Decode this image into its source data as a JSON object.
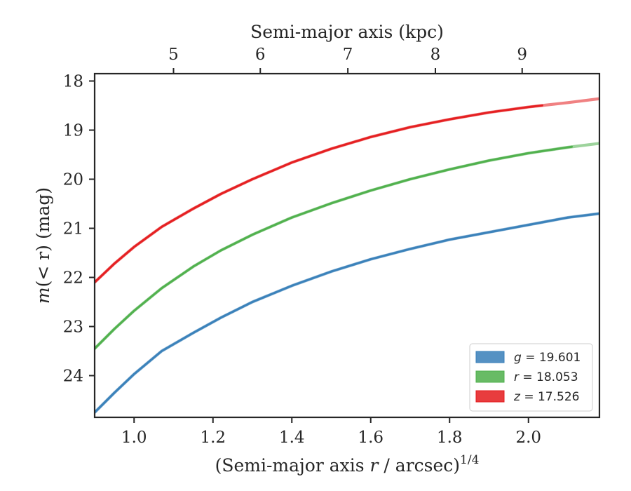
{
  "chart_data": {
    "type": "line",
    "xlabel": "(Semi-major axis r / arcsec)1/4",
    "xlabel_parts": {
      "pre": "(Semi-major axis ",
      "var": "r",
      "post": " / arcsec)",
      "sup": "1/4"
    },
    "x2label": "Semi-major axis (kpc)",
    "ylabel": "m(<r) (mag)",
    "ylabel_parts": {
      "pre": "m",
      "post": "(< r) (mag)"
    },
    "xlim": [
      0.9,
      2.18
    ],
    "ylim": [
      24.85,
      17.85
    ],
    "y_inverted": true,
    "xticks": [
      1.0,
      1.2,
      1.4,
      1.6,
      1.8,
      2.0
    ],
    "xtick_labels": [
      "1.0",
      "1.2",
      "1.4",
      "1.6",
      "1.8",
      "2.0"
    ],
    "yticks": [
      18,
      19,
      20,
      21,
      22,
      23,
      24
    ],
    "ytick_labels": [
      "18",
      "19",
      "20",
      "21",
      "22",
      "23",
      "24"
    ],
    "top_ticks_at_x": [
      1.1,
      1.32,
      1.542,
      1.764,
      1.984
    ],
    "top_tick_labels": [
      "5",
      "6",
      "7",
      "8",
      "9"
    ],
    "legend_position": "lower-right",
    "grid": false,
    "series": [
      {
        "name": "g = 19.601",
        "legend_var": "g",
        "legend_val": "= 19.601",
        "color": "#377eb8",
        "x": [
          0.9,
          0.95,
          1.0,
          1.07,
          1.15,
          1.22,
          1.3,
          1.4,
          1.5,
          1.6,
          1.7,
          1.8,
          1.9,
          2.0,
          2.1,
          2.18
        ],
        "y": [
          24.75,
          24.35,
          23.97,
          23.5,
          23.13,
          22.82,
          22.5,
          22.17,
          21.88,
          21.63,
          21.42,
          21.23,
          21.08,
          20.93,
          20.78,
          20.7
        ]
      },
      {
        "name": "r = 18.053",
        "legend_var": "r",
        "legend_val": "= 18.053",
        "color": "#4daf4a",
        "x": [
          0.9,
          0.95,
          1.0,
          1.07,
          1.15,
          1.22,
          1.3,
          1.4,
          1.5,
          1.6,
          1.7,
          1.8,
          1.9,
          2.0,
          2.1,
          2.18
        ],
        "y": [
          23.45,
          23.05,
          22.68,
          22.22,
          21.78,
          21.45,
          21.13,
          20.78,
          20.49,
          20.23,
          20.0,
          19.8,
          19.62,
          19.47,
          19.35,
          19.27
        ]
      },
      {
        "name": "z = 17.526",
        "legend_var": "z",
        "legend_val": "= 17.526",
        "color": "#e41a1c",
        "x": [
          0.9,
          0.95,
          1.0,
          1.07,
          1.15,
          1.22,
          1.3,
          1.4,
          1.5,
          1.6,
          1.7,
          1.8,
          1.9,
          2.0,
          2.1,
          2.18
        ],
        "y": [
          22.1,
          21.72,
          21.38,
          20.97,
          20.6,
          20.3,
          20.0,
          19.66,
          19.38,
          19.14,
          18.94,
          18.78,
          18.64,
          18.53,
          18.44,
          18.36
        ]
      }
    ]
  }
}
